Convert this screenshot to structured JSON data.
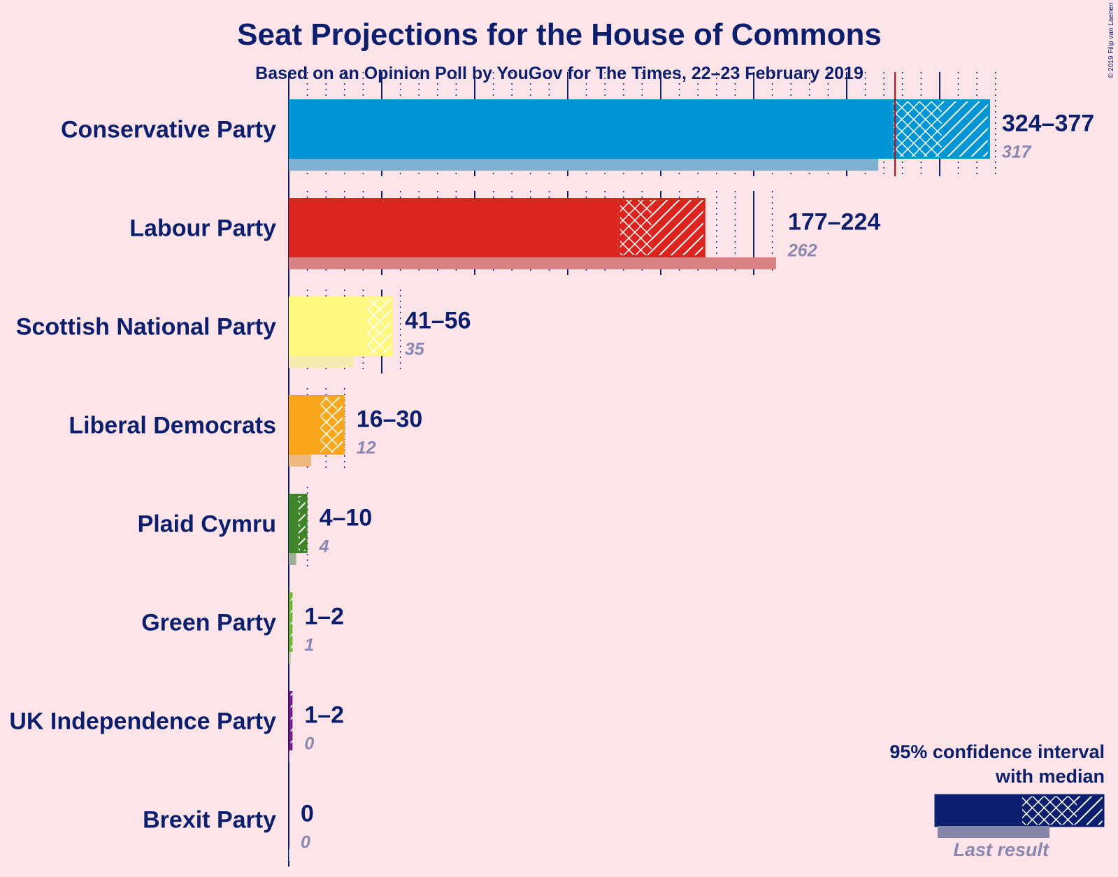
{
  "title": "Seat Projections for the House of Commons",
  "subtitle": "Based on an Opinion Poll by YouGov for The Times, 22–23 February 2019",
  "copyright": "© 2019 Filip van Laenen",
  "legend": {
    "line1": "95% confidence interval",
    "line2": "with median",
    "last_result": "Last result"
  },
  "colors": {
    "background": "#FDE4E8",
    "text": "#0B1F6E",
    "last_result_text": "#8A87B0",
    "majority_line": "#CC0000"
  },
  "chart_data": {
    "type": "bar",
    "orientation": "horizontal",
    "title": "Seat Projections for the House of Commons",
    "subtitle": "Based on an Opinion Poll by YouGov for The Times, 22–23 February 2019",
    "majority_threshold": 326,
    "series": [
      {
        "party": "Conservative Party",
        "range_label": "324–377",
        "last_label": "317",
        "low": 324,
        "median": 351,
        "high": 377,
        "last": 317,
        "color": "#0096D6",
        "last_color": "#80B1D3"
      },
      {
        "party": "Labour Party",
        "range_label": "177–224",
        "last_label": "262",
        "low": 177,
        "median": 195,
        "high": 224,
        "last": 262,
        "color": "#DC241F",
        "last_color": "#D98185"
      },
      {
        "party": "Scottish National Party",
        "range_label": "41–56",
        "last_label": "35",
        "low": 41,
        "median": 51,
        "high": 56,
        "last": 35,
        "color": "#FFF77F",
        "last_color": "#F6EBB0"
      },
      {
        "party": "Liberal Democrats",
        "range_label": "16–30",
        "last_label": "12",
        "low": 16,
        "median": 26,
        "high": 30,
        "last": 12,
        "color": "#FAA61A",
        "last_color": "#EEB77E"
      },
      {
        "party": "Plaid Cymru",
        "range_label": "4–10",
        "last_label": "4",
        "low": 4,
        "median": 6,
        "high": 10,
        "last": 4,
        "color": "#3F8428",
        "last_color": "#9EAD93"
      },
      {
        "party": "Green Party",
        "range_label": "1–2",
        "last_label": "1",
        "low": 1,
        "median": 1,
        "high": 2,
        "last": 1,
        "color": "#6AB023",
        "last_color": "#B2C88F"
      },
      {
        "party": "UK Independence Party",
        "range_label": "1–2",
        "last_label": "0",
        "low": 1,
        "median": 1,
        "high": 2,
        "last": 0,
        "color": "#70147A",
        "last_color": "#B28AB6"
      },
      {
        "party": "Brexit Party",
        "range_label": "0",
        "last_label": "0",
        "low": 0,
        "median": 0,
        "high": 0,
        "last": 0,
        "color": "#12B6CF",
        "last_color": "#8FD0DA"
      }
    ]
  }
}
